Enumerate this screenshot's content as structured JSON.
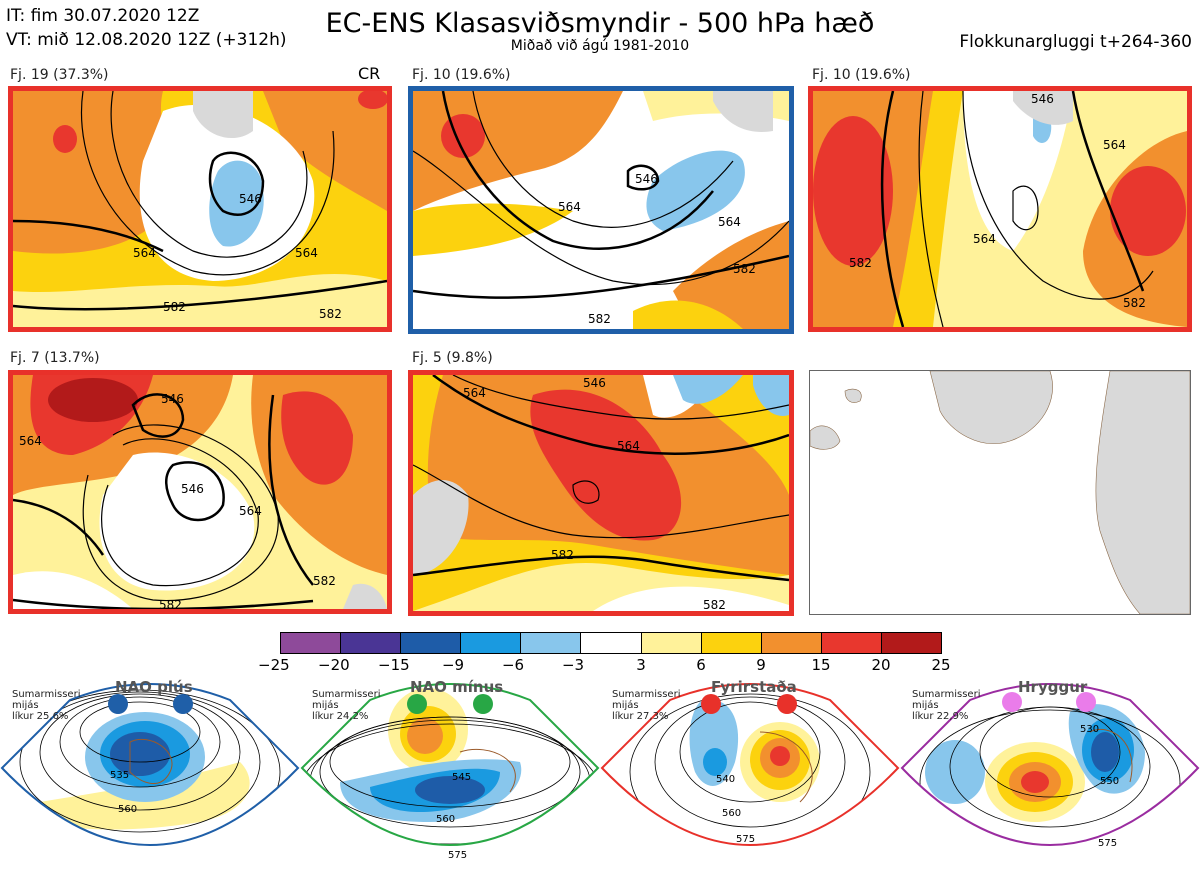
{
  "header": {
    "init": "IT: fim 30.07.2020 12Z",
    "valid": "VT: mið 12.08.2020 12Z  (+312h)",
    "title": "EC-ENS Klasasviðsmyndir - 500 hPa hæð",
    "subtitle": "Miðað við ágú 1981-2010",
    "window": "Flokkunargluggi t+264-360"
  },
  "clusters": [
    {
      "caption": "Fj. 19 (37.3%)",
      "members": 19,
      "percent": 37.3,
      "regime_color": "#e8312a",
      "tag": "CR",
      "labels": [
        "546",
        "564",
        "564",
        "582",
        "582"
      ]
    },
    {
      "caption": "Fj. 10 (19.6%)",
      "members": 10,
      "percent": 19.6,
      "regime_color": "#1f5fa8",
      "labels": [
        "546",
        "564",
        "564",
        "582",
        "582"
      ]
    },
    {
      "caption": "Fj. 10 (19.6%)",
      "members": 10,
      "percent": 19.6,
      "regime_color": "#e8312a",
      "labels": [
        "546",
        "564",
        "564",
        "582",
        "582"
      ]
    },
    {
      "caption": "Fj. 7 (13.7%)",
      "members": 7,
      "percent": 13.7,
      "regime_color": "#e8312a",
      "labels": [
        "546",
        "546",
        "564",
        "564",
        "582",
        "582"
      ]
    },
    {
      "caption": "Fj. 5 (9.8%)",
      "members": 5,
      "percent": 9.8,
      "regime_color": "#e8312a",
      "labels": [
        "546",
        "564",
        "564",
        "582",
        "582"
      ]
    }
  ],
  "colorbar": {
    "ticks": [
      "−25",
      "−20",
      "−15",
      "−9",
      "−6",
      "−3",
      "3",
      "6",
      "9",
      "15",
      "20",
      "25"
    ],
    "colors": [
      "#8e4a9a",
      "#4a3595",
      "#1e5ca8",
      "#1a9ae0",
      "#88c6ec",
      "#ffffff",
      "#fff29a",
      "#fcd20e",
      "#f2902e",
      "#e8372e",
      "#b21a1a"
    ]
  },
  "regimes": [
    {
      "title": "NAO plús",
      "note": [
        "Sumarmisseri",
        "mijás",
        "líkur 25,6%"
      ],
      "color": "#1f5fa8",
      "labels": [
        "535",
        "560"
      ]
    },
    {
      "title": "NAO mínus",
      "note": [
        "Sumarmisseri",
        "mijás",
        "líkur 24,2%"
      ],
      "color": "#28a745",
      "labels": [
        "545",
        "560",
        "575"
      ]
    },
    {
      "title": "Fyrirstaða",
      "note": [
        "Sumarmisseri",
        "mijás",
        "líkur 27,3%"
      ],
      "color": "#e8312a",
      "labels": [
        "540",
        "560",
        "575"
      ]
    },
    {
      "title": "Hryggur",
      "note": [
        "Sumarmisseri",
        "mijás",
        "líkur 22,9%"
      ],
      "color": "#9a2ca0",
      "labels": [
        "530",
        "550",
        "575"
      ]
    }
  ]
}
